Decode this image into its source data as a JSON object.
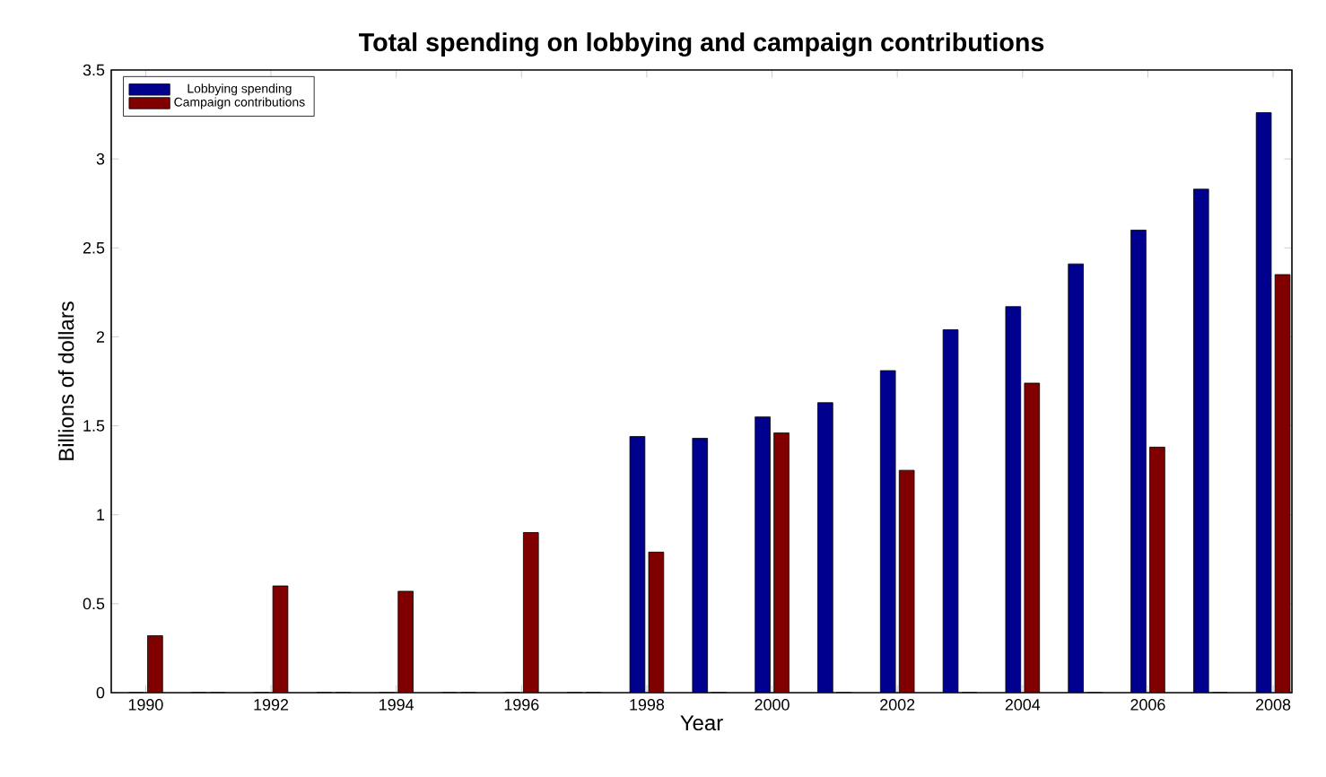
{
  "chart_data": {
    "type": "bar",
    "title": "Total spending on lobbying and campaign contributions",
    "xlabel": "Year",
    "ylabel": "Billions of dollars",
    "x": [
      1990,
      1991,
      1992,
      1993,
      1994,
      1995,
      1996,
      1997,
      1998,
      1999,
      2000,
      2001,
      2002,
      2003,
      2004,
      2005,
      2006,
      2007,
      2008
    ],
    "series": [
      {
        "name": "Lobbying spending",
        "color": "#00008f",
        "values": [
          0,
          0,
          0,
          0,
          0,
          0,
          0,
          0,
          1.44,
          1.43,
          1.55,
          1.63,
          1.81,
          2.04,
          2.17,
          2.41,
          2.6,
          2.83,
          3.26
        ]
      },
      {
        "name": "Campaign contributions",
        "color": "#800000",
        "values": [
          0.32,
          0,
          0.6,
          0,
          0.57,
          0,
          0.9,
          0,
          0.79,
          0,
          1.46,
          0,
          1.25,
          0,
          1.74,
          0,
          1.38,
          0,
          2.35
        ]
      }
    ],
    "xlim": [
      1989.45,
      2008.3
    ],
    "xticks": [
      1990,
      1992,
      1994,
      1996,
      1998,
      2000,
      2002,
      2004,
      2006,
      2008
    ],
    "ylim": [
      0,
      3.5
    ],
    "yticks": [
      0,
      0.5,
      1,
      1.5,
      2,
      2.5,
      3,
      3.5
    ],
    "legend": "top left"
  }
}
